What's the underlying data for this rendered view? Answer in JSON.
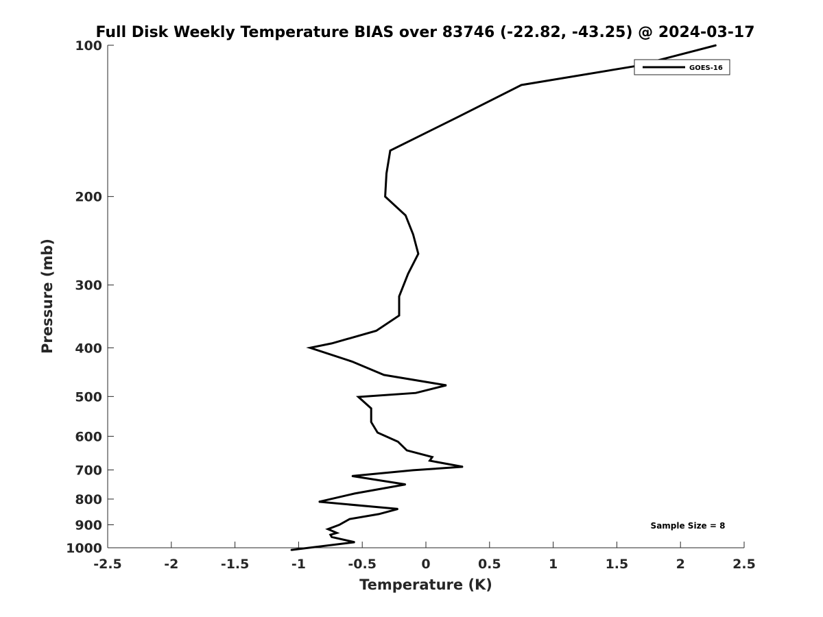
{
  "chart_data": {
    "type": "line",
    "title": "Full Disk Weekly Temperature BIAS over 83746 (-22.82, -43.25) @ 2024-03-17",
    "xlabel": "Temperature (K)",
    "ylabel": "Pressure (mb)",
    "xlim": [
      -2.5,
      2.5
    ],
    "ylim": [
      100,
      1000
    ],
    "y_scale": "log",
    "y_reversed": true,
    "x_ticks": [
      "-2.5",
      "-2",
      "-1.5",
      "-1",
      "-0.5",
      "0",
      "0.5",
      "1",
      "1.5",
      "2",
      "2.5"
    ],
    "y_ticks": [
      "100",
      "200",
      "300",
      "400",
      "500",
      "600",
      "700",
      "800",
      "900",
      "1000"
    ],
    "grid": false,
    "legend_position": "top-right",
    "annotation": "Sample Size = 8",
    "series": [
      {
        "name": "GOES-16",
        "color": "#000000",
        "x": [
          2.28,
          1.65,
          0.75,
          0.25,
          -0.28,
          -0.31,
          -0.32,
          -0.16,
          -0.1,
          -0.06,
          -0.14,
          -0.21,
          -0.21,
          -0.39,
          -0.74,
          -0.91,
          -0.58,
          -0.33,
          0.16,
          -0.08,
          -0.53,
          -0.43,
          -0.43,
          -0.38,
          -0.22,
          -0.15,
          0.05,
          0.03,
          0.29,
          -0.1,
          -0.58,
          -0.16,
          -0.56,
          -0.84,
          -0.22,
          -0.37,
          -0.6,
          -0.68,
          -0.77,
          -0.7,
          -0.75,
          -0.74,
          -0.56,
          -1.06
        ],
        "y": [
          100,
          110,
          120,
          139,
          162,
          180,
          200,
          218,
          238,
          260,
          285,
          316,
          345,
          370,
          392,
          400,
          426,
          453,
          475,
          492,
          501,
          528,
          562,
          590,
          615,
          640,
          660,
          671,
          690,
          701,
          720,
          748,
          780,
          810,
          837,
          857,
          877,
          900,
          918,
          934,
          942,
          952,
          975,
          1010
        ]
      }
    ]
  }
}
